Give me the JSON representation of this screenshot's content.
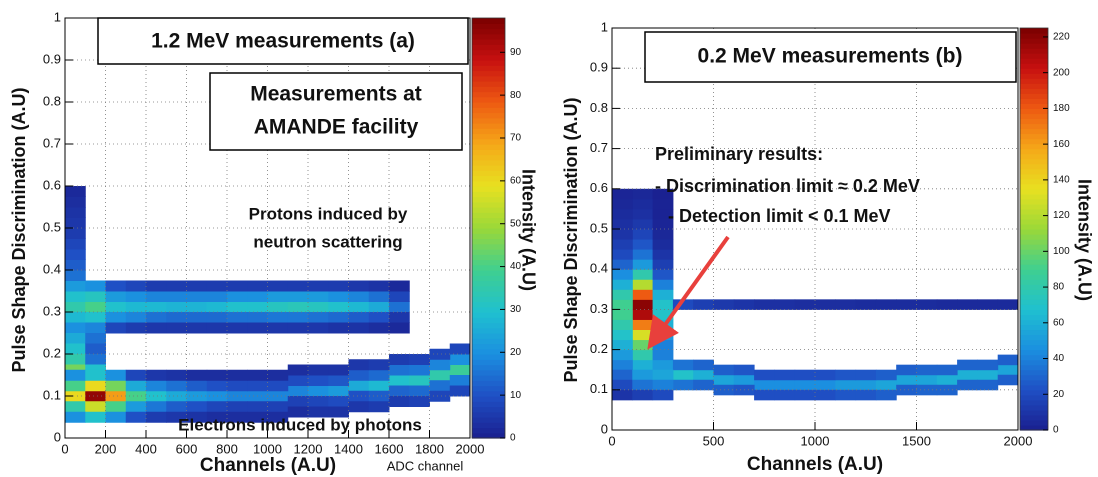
{
  "chart_data": [
    {
      "type": "heatmap",
      "annotations": [
        "1.2 MeV measurements (a)",
        "Measurements at",
        "AMANDE facility",
        "Protons induced by",
        "neutron scattering",
        "Electrons induced by photons"
      ],
      "xlabel": "Channels (A.U)",
      "x_note": "ADC channel",
      "ylabel": "Pulse Shape Discrimination (A.U)",
      "zlabel": "Intensity (A.U)",
      "xlim": [
        0,
        2000
      ],
      "ylim": [
        0,
        1
      ],
      "zlim": [
        0,
        98
      ],
      "xticks": [
        0,
        200,
        400,
        600,
        800,
        1000,
        1200,
        1400,
        1600,
        1800,
        2000
      ],
      "yticks": [
        0,
        0.1,
        0.2,
        0.3,
        0.4,
        0.5,
        0.6,
        0.7,
        0.8,
        0.9,
        1
      ],
      "zticks": [
        0,
        10,
        20,
        30,
        40,
        50,
        60,
        70,
        80,
        90
      ],
      "grid": true,
      "colorscale": [
        "#1a1f8f",
        "#1f4fc4",
        "#1b8fe0",
        "#1fc0d0",
        "#3fcf90",
        "#9ad838",
        "#e8e020",
        "#f5a818",
        "#ee5a12",
        "#c81010",
        "#7a0000"
      ],
      "x": [
        50,
        150,
        250,
        350,
        450,
        550,
        650,
        750,
        850,
        950,
        1050,
        1150,
        1250,
        1350,
        1450,
        1550,
        1650,
        50,
        150,
        250,
        350,
        450,
        550,
        650,
        750,
        850,
        950,
        1050,
        1150,
        1250,
        1350,
        1450,
        1550,
        1650,
        50,
        150,
        250,
        350,
        450,
        550,
        650,
        750,
        850,
        950,
        1050,
        1150,
        1250,
        1350,
        1450,
        1550,
        1650,
        50,
        150,
        250,
        350,
        450,
        550,
        650,
        750,
        850,
        950,
        1050,
        1150,
        1250,
        1350,
        1450,
        1550,
        1650,
        50,
        150,
        250,
        350,
        450,
        550,
        650,
        750,
        850,
        950,
        1050,
        1150,
        1250,
        1350,
        1450,
        1550,
        1650,
        50,
        50,
        50,
        50,
        50,
        50,
        50,
        50,
        50,
        50,
        50,
        50,
        50,
        150,
        150,
        150,
        150,
        50,
        150,
        250,
        350,
        450,
        550,
        650,
        750,
        850,
        950,
        1050,
        1150,
        1250,
        1350,
        1450,
        1550,
        1650,
        1750,
        1850,
        1950,
        50,
        150,
        250,
        350,
        450,
        550,
        650,
        750,
        850,
        950,
        1050,
        1150,
        1250,
        1350,
        1450,
        1550,
        1650,
        1750,
        1850,
        1950,
        50,
        150,
        250,
        350,
        450,
        550,
        650,
        750,
        850,
        950,
        1050,
        1150,
        1250,
        1350,
        1450,
        1550,
        1650,
        1750,
        1850,
        1950,
        50,
        150,
        250,
        350,
        450,
        550,
        650,
        750,
        850,
        950,
        1050,
        1150,
        1250,
        1350,
        1450,
        1550,
        1650,
        1750,
        1850,
        1950,
        50,
        150,
        250,
        350,
        450,
        550,
        650,
        750,
        850,
        950,
        1050,
        1150,
        1250,
        1350,
        1450,
        1550,
        1650,
        1750,
        1850,
        1950
      ],
      "y": [
        0.3125,
        0.3125,
        0.3125,
        0.3125,
        0.3125,
        0.3125,
        0.3125,
        0.3125,
        0.3125,
        0.3125,
        0.3125,
        0.3125,
        0.3125,
        0.3125,
        0.3125,
        0.3125,
        0.3125,
        0.3375,
        0.3375,
        0.3375,
        0.3375,
        0.3375,
        0.3375,
        0.3375,
        0.3375,
        0.3375,
        0.3375,
        0.3375,
        0.3375,
        0.3375,
        0.3375,
        0.3375,
        0.3375,
        0.3375,
        0.2875,
        0.2875,
        0.2875,
        0.2875,
        0.2875,
        0.2875,
        0.2875,
        0.2875,
        0.2875,
        0.2875,
        0.2875,
        0.2875,
        0.2875,
        0.2875,
        0.2875,
        0.2875,
        0.2875,
        0.3625,
        0.3625,
        0.3625,
        0.3625,
        0.3625,
        0.3625,
        0.3625,
        0.3625,
        0.3625,
        0.3625,
        0.3625,
        0.3625,
        0.3625,
        0.3625,
        0.3625,
        0.3625,
        0.3625,
        0.2625,
        0.2625,
        0.2625,
        0.2625,
        0.2625,
        0.2625,
        0.2625,
        0.2625,
        0.2625,
        0.2625,
        0.2625,
        0.2625,
        0.2625,
        0.2625,
        0.2625,
        0.2625,
        0.2625,
        0.2375,
        0.2125,
        0.1875,
        0.1625,
        0.3875,
        0.4125,
        0.4375,
        0.4625,
        0.4875,
        0.5125,
        0.5375,
        0.5625,
        0.5875,
        0.2375,
        0.2125,
        0.1875,
        0.1625,
        0.1,
        0.1,
        0.1,
        0.1,
        0.1,
        0.1,
        0.1,
        0.1,
        0.1,
        0.1,
        0.1,
        0.1125,
        0.1125,
        0.1125,
        0.125,
        0.125,
        0.1375,
        0.1375,
        0.15,
        0.1625,
        0.125,
        0.125,
        0.125,
        0.125,
        0.125,
        0.125,
        0.125,
        0.125,
        0.125,
        0.125,
        0.125,
        0.1375,
        0.1375,
        0.1375,
        0.15,
        0.15,
        0.1625,
        0.1625,
        0.175,
        0.1875,
        0.075,
        0.075,
        0.075,
        0.075,
        0.075,
        0.075,
        0.075,
        0.075,
        0.075,
        0.075,
        0.075,
        0.0875,
        0.0875,
        0.0875,
        0.1,
        0.1,
        0.1125,
        0.1125,
        0.125,
        0.1375,
        0.05,
        0.05,
        0.05,
        0.05,
        0.05,
        0.05,
        0.05,
        0.05,
        0.05,
        0.05,
        0.05,
        0.0625,
        0.0625,
        0.0625,
        0.075,
        0.075,
        0.0875,
        0.0875,
        0.1,
        0.1125,
        0.15,
        0.15,
        0.15,
        0.15,
        0.15,
        0.15,
        0.15,
        0.15,
        0.15,
        0.15,
        0.15,
        0.1625,
        0.1625,
        0.1625,
        0.175,
        0.175,
        0.1875,
        0.1875,
        0.2,
        0.2125
      ],
      "values": [
        35,
        40,
        30,
        28,
        28,
        27,
        27,
        28,
        30,
        30,
        32,
        33,
        32,
        30,
        28,
        25,
        15,
        30,
        32,
        22,
        20,
        18,
        18,
        18,
        18,
        20,
        20,
        22,
        22,
        22,
        20,
        18,
        15,
        8,
        28,
        30,
        20,
        18,
        15,
        14,
        14,
        14,
        15,
        15,
        16,
        16,
        15,
        14,
        12,
        10,
        5,
        22,
        20,
        10,
        8,
        6,
        6,
        6,
        6,
        6,
        6,
        6,
        6,
        6,
        6,
        5,
        4,
        2,
        20,
        18,
        8,
        6,
        5,
        5,
        5,
        5,
        5,
        5,
        5,
        5,
        5,
        4,
        4,
        3,
        2,
        25,
        30,
        35,
        45,
        15,
        12,
        10,
        8,
        6,
        5,
        4,
        3,
        2,
        15,
        12,
        15,
        30,
        60,
        95,
        70,
        40,
        30,
        25,
        22,
        20,
        18,
        18,
        18,
        18,
        20,
        22,
        25,
        28,
        30,
        32,
        35,
        38,
        40,
        60,
        45,
        25,
        18,
        15,
        12,
        10,
        9,
        9,
        9,
        9,
        10,
        11,
        12,
        14,
        15,
        16,
        18,
        20,
        35,
        55,
        40,
        22,
        16,
        12,
        10,
        8,
        7,
        7,
        7,
        7,
        8,
        9,
        10,
        12,
        13,
        14,
        15,
        17,
        20,
        30,
        20,
        10,
        6,
        5,
        4,
        3,
        3,
        3,
        3,
        3,
        4,
        4,
        5,
        6,
        6,
        7,
        8,
        8,
        20,
        30,
        20,
        8,
        5,
        4,
        3,
        3,
        3,
        3,
        3,
        3,
        4,
        4,
        5,
        6,
        6,
        7,
        8,
        8
      ]
    },
    {
      "type": "heatmap",
      "annotations": [
        "0.2 MeV measurements (b)",
        "Preliminary results:",
        "- Discrimination limit ≈ 0.2 MeV",
        "- Detection limit < 0.1 MeV"
      ],
      "xlabel": "Channels (A.U)",
      "ylabel": "Pulse Shape Discrimination (A.U)",
      "zlabel": "Intensity (A.U)",
      "xlim": [
        0,
        2000
      ],
      "ylim": [
        0,
        1
      ],
      "zlim": [
        0,
        225
      ],
      "xticks": [
        0,
        500,
        1000,
        1500,
        2000
      ],
      "yticks": [
        0,
        0.1,
        0.2,
        0.3,
        0.4,
        0.5,
        0.6,
        0.7,
        0.8,
        0.9,
        1
      ],
      "zticks": [
        0,
        20,
        40,
        60,
        80,
        100,
        120,
        140,
        160,
        180,
        200,
        220
      ],
      "grid": true,
      "colorscale": [
        "#1a1f8f",
        "#1f4fc4",
        "#1b8fe0",
        "#1fc0d0",
        "#3fcf90",
        "#9ad838",
        "#e8e020",
        "#f5a818",
        "#ee5a12",
        "#c81010",
        "#7a0000"
      ],
      "x": [
        150,
        150,
        150,
        150,
        150,
        150,
        150,
        150,
        150,
        150,
        150,
        150,
        150,
        150,
        150,
        150,
        150,
        150,
        50,
        50,
        50,
        50,
        50,
        50,
        50,
        50,
        50,
        50,
        50,
        50,
        50,
        50,
        50,
        50,
        50,
        50,
        250,
        250,
        250,
        250,
        250,
        250,
        250,
        250,
        250,
        250,
        250,
        250,
        250,
        250,
        250,
        250,
        250,
        250,
        350,
        450,
        550,
        650,
        750,
        850,
        950,
        1050,
        1150,
        1250,
        1350,
        1450,
        1550,
        1650,
        1750,
        1850,
        1950,
        350,
        450,
        550,
        650,
        750,
        850,
        950,
        1050,
        1150,
        1250,
        1350,
        1450,
        1550,
        1650,
        1750,
        1850,
        1950,
        350,
        450,
        550,
        650,
        750,
        850,
        950,
        1050,
        1150,
        1250,
        1350,
        1450,
        1550,
        1650,
        1750,
        1850,
        1950,
        350,
        450,
        550,
        650,
        750,
        850,
        950,
        1050,
        1150,
        1250,
        1350,
        1450,
        1550,
        1650,
        1750,
        1850,
        1950,
        50,
        50,
        50,
        150,
        150,
        150,
        250,
        250,
        250
      ],
      "y": [
        0.1625,
        0.1875,
        0.2125,
        0.2375,
        0.2625,
        0.2875,
        0.3125,
        0.3375,
        0.3625,
        0.3875,
        0.4125,
        0.4375,
        0.4625,
        0.4875,
        0.5125,
        0.5375,
        0.5625,
        0.5875,
        0.1625,
        0.1875,
        0.2125,
        0.2375,
        0.2625,
        0.2875,
        0.3125,
        0.3375,
        0.3625,
        0.3875,
        0.4125,
        0.4375,
        0.4625,
        0.4875,
        0.5125,
        0.5375,
        0.5625,
        0.5875,
        0.1625,
        0.1875,
        0.2125,
        0.2375,
        0.2625,
        0.2875,
        0.3125,
        0.3375,
        0.3625,
        0.3875,
        0.4125,
        0.4375,
        0.4625,
        0.4875,
        0.5125,
        0.5375,
        0.5625,
        0.5875,
        0.3125,
        0.3125,
        0.3125,
        0.3125,
        0.3125,
        0.3125,
        0.3125,
        0.3125,
        0.3125,
        0.3125,
        0.3125,
        0.3125,
        0.3125,
        0.3125,
        0.3125,
        0.3125,
        0.3125,
        0.1375,
        0.1375,
        0.125,
        0.125,
        0.1125,
        0.1125,
        0.1125,
        0.1125,
        0.1125,
        0.1125,
        0.1125,
        0.125,
        0.125,
        0.125,
        0.1375,
        0.1375,
        0.15,
        0.1625,
        0.1625,
        0.15,
        0.15,
        0.1375,
        0.1375,
        0.1375,
        0.1375,
        0.1375,
        0.1375,
        0.1375,
        0.15,
        0.15,
        0.15,
        0.1625,
        0.1625,
        0.175,
        0.1125,
        0.1125,
        0.1,
        0.1,
        0.0875,
        0.0875,
        0.0875,
        0.0875,
        0.0875,
        0.0875,
        0.0875,
        0.1,
        0.1,
        0.1,
        0.1125,
        0.1125,
        0.125,
        0.1375,
        0.1125,
        0.0875,
        0.1375,
        0.1125,
        0.0875,
        0.1375,
        0.1125,
        0.0875
      ],
      "values": [
        60,
        80,
        100,
        130,
        170,
        210,
        220,
        180,
        120,
        80,
        50,
        35,
        25,
        18,
        12,
        8,
        6,
        4,
        40,
        50,
        60,
        70,
        80,
        90,
        90,
        80,
        60,
        45,
        30,
        20,
        15,
        10,
        8,
        6,
        4,
        3,
        50,
        40,
        40,
        50,
        60,
        70,
        70,
        60,
        40,
        25,
        15,
        10,
        6,
        4,
        3,
        2,
        2,
        1,
        20,
        15,
        12,
        10,
        8,
        8,
        7,
        7,
        7,
        6,
        6,
        6,
        6,
        5,
        5,
        5,
        5,
        70,
        60,
        55,
        50,
        45,
        45,
        45,
        45,
        50,
        50,
        55,
        55,
        55,
        60,
        60,
        60,
        55,
        35,
        30,
        28,
        25,
        22,
        22,
        22,
        22,
        25,
        25,
        28,
        28,
        30,
        30,
        30,
        30,
        28,
        35,
        30,
        28,
        25,
        22,
        22,
        22,
        22,
        25,
        25,
        28,
        28,
        30,
        30,
        30,
        30,
        28,
        30,
        20,
        10,
        50,
        35,
        15,
        55,
        40,
        20
      ]
    }
  ]
}
